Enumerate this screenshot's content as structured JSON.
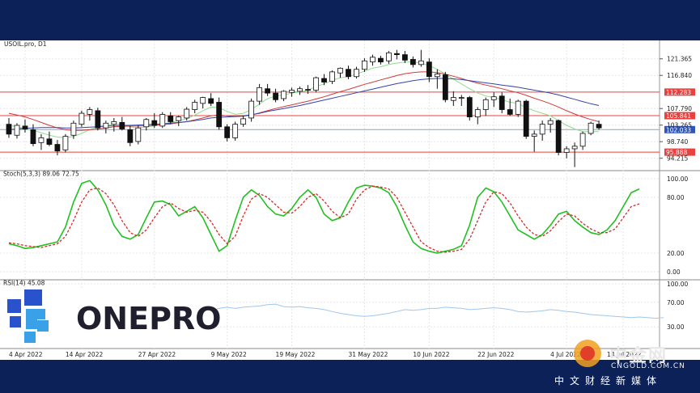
{
  "header": {
    "title": "USOIL.pro, D1"
  },
  "price_axis": {
    "ticks": [
      "121.365",
      "116.840",
      "107.790",
      "103.265",
      "98.740",
      "94.215"
    ],
    "tick_values": [
      121.365,
      116.84,
      107.79,
      103.265,
      98.74,
      94.215
    ],
    "levels": [
      {
        "label": "112.283",
        "value": 112.283,
        "color": "#e8413f"
      },
      {
        "label": "105.841",
        "value": 105.841,
        "color": "#e8413f"
      },
      {
        "label": "102.033",
        "value": 102.033,
        "color": "#2f56b8"
      },
      {
        "label": "95.888",
        "value": 95.888,
        "color": "#e8413f"
      }
    ],
    "range": [
      91.5,
      125.5
    ]
  },
  "x_axis": {
    "labels": [
      "4 Apr 2022",
      "14 Apr 2022",
      "27 Apr 2022",
      "9 May 2022",
      "19 May 2022",
      "31 May 2022",
      "10 Jun 2022",
      "22 Jun 2022",
      "4 Jul 2022",
      "14 Jul 2022"
    ],
    "label_index": [
      2,
      9,
      18,
      27,
      35,
      44,
      52,
      60,
      69,
      76
    ]
  },
  "stoch": {
    "title": "Stoch(5,3,3) 89.06 72.75",
    "ticks": [
      "100.00",
      "80.00",
      "20.00",
      "0.00"
    ],
    "tick_values": [
      100,
      80,
      20,
      0
    ],
    "colors": {
      "k": "#22c022",
      "d": "#d42a2a"
    }
  },
  "rsi": {
    "title": "RSI(14) 45.08",
    "ticks": [
      "100.00",
      "70.00",
      "30.00"
    ],
    "tick_values": [
      100,
      70,
      30
    ]
  },
  "logo": {
    "text": "ONEPRO"
  },
  "watermark": {
    "cn": "中金网",
    "url": "CNGOLD.COM.CN",
    "sub": "中文财经新媒体"
  },
  "chart_data": {
    "type": "candlestick",
    "title": "USOIL.pro, D1",
    "x_count": 81,
    "candles": [
      [
        103.5,
        105.2,
        99.8,
        100.8
      ],
      [
        100.5,
        103.8,
        99.6,
        103.2
      ],
      [
        103.0,
        104.8,
        101.2,
        102.2
      ],
      [
        102.0,
        103.5,
        97.5,
        98.2
      ],
      [
        98.5,
        100.8,
        96.5,
        99.8
      ],
      [
        99.5,
        101.5,
        97.5,
        98.0
      ],
      [
        98.0,
        99.2,
        95.0,
        96.2
      ],
      [
        96.5,
        100.8,
        95.8,
        100.2
      ],
      [
        100.5,
        104.5,
        99.5,
        103.8
      ],
      [
        103.5,
        107.2,
        102.8,
        106.5
      ],
      [
        106.2,
        108.2,
        104.5,
        107.5
      ],
      [
        107.2,
        108.0,
        101.8,
        102.5
      ],
      [
        102.5,
        104.5,
        101.0,
        103.8
      ],
      [
        103.5,
        105.2,
        101.5,
        104.2
      ],
      [
        104.0,
        105.5,
        101.8,
        102.2
      ],
      [
        102.0,
        103.0,
        97.5,
        98.5
      ],
      [
        98.8,
        103.2,
        98.0,
        102.5
      ],
      [
        102.8,
        105.2,
        101.8,
        104.8
      ],
      [
        104.5,
        106.5,
        102.5,
        103.2
      ],
      [
        103.0,
        106.8,
        102.5,
        106.2
      ],
      [
        105.8,
        106.8,
        103.5,
        104.2
      ],
      [
        104.5,
        105.8,
        103.0,
        105.5
      ],
      [
        105.2,
        108.2,
        104.5,
        107.6
      ],
      [
        107.5,
        110.2,
        106.5,
        109.5
      ],
      [
        109.2,
        111.0,
        107.8,
        110.8
      ],
      [
        110.5,
        112.0,
        108.5,
        109.2
      ],
      [
        109.5,
        110.8,
        102.0,
        102.8
      ],
      [
        102.8,
        103.5,
        98.8,
        99.8
      ],
      [
        99.8,
        104.2,
        99.0,
        103.5
      ],
      [
        103.5,
        105.8,
        102.8,
        105.0
      ],
      [
        105.2,
        110.5,
        104.2,
        109.8
      ],
      [
        109.8,
        114.5,
        108.8,
        113.5
      ],
      [
        113.2,
        114.5,
        111.2,
        112.0
      ],
      [
        112.0,
        113.2,
        109.5,
        110.2
      ],
      [
        110.5,
        112.8,
        109.8,
        112.5
      ],
      [
        112.2,
        113.5,
        111.0,
        112.8
      ],
      [
        112.5,
        113.8,
        111.5,
        113.2
      ],
      [
        113.0,
        114.2,
        111.8,
        112.8
      ],
      [
        112.8,
        116.5,
        112.2,
        116.2
      ],
      [
        116.0,
        117.2,
        114.2,
        115.0
      ],
      [
        115.2,
        118.2,
        114.5,
        117.8
      ],
      [
        117.5,
        119.0,
        116.2,
        118.8
      ],
      [
        118.5,
        119.5,
        115.8,
        116.5
      ],
      [
        116.5,
        119.2,
        116.0,
        118.5
      ],
      [
        118.5,
        121.5,
        117.8,
        120.8
      ],
      [
        120.5,
        122.5,
        119.5,
        121.8
      ],
      [
        121.5,
        122.2,
        119.8,
        120.5
      ],
      [
        120.8,
        123.5,
        120.0,
        123.0
      ],
      [
        122.8,
        123.8,
        121.2,
        122.5
      ],
      [
        122.5,
        123.5,
        120.2,
        121.0
      ],
      [
        121.2,
        122.0,
        119.0,
        119.8
      ],
      [
        119.8,
        123.8,
        119.2,
        120.8
      ],
      [
        120.5,
        121.5,
        115.0,
        116.5
      ],
      [
        116.5,
        118.5,
        113.2,
        117.2
      ],
      [
        117.0,
        117.8,
        109.5,
        110.2
      ],
      [
        110.0,
        112.5,
        108.5,
        110.8
      ],
      [
        110.8,
        111.5,
        108.5,
        110.8
      ],
      [
        110.8,
        111.2,
        104.5,
        105.5
      ],
      [
        105.5,
        108.2,
        103.5,
        107.5
      ],
      [
        107.5,
        110.8,
        105.8,
        110.2
      ],
      [
        110.2,
        112.2,
        108.2,
        111.0
      ],
      [
        111.2,
        112.2,
        106.5,
        107.5
      ],
      [
        107.5,
        110.5,
        105.8,
        106.2
      ],
      [
        106.2,
        110.2,
        105.5,
        109.8
      ],
      [
        109.8,
        110.2,
        99.5,
        100.2
      ],
      [
        100.2,
        101.8,
        96.0,
        100.8
      ],
      [
        100.8,
        104.5,
        99.0,
        103.5
      ],
      [
        103.5,
        105.2,
        101.2,
        104.5
      ],
      [
        104.5,
        104.8,
        95.0,
        95.8
      ],
      [
        95.8,
        97.5,
        94.2,
        96.8
      ],
      [
        96.8,
        98.5,
        91.8,
        97.5
      ],
      [
        97.5,
        101.5,
        96.5,
        101.0
      ],
      [
        101.0,
        104.2,
        100.5,
        103.8
      ],
      [
        103.5,
        104.5,
        102.0,
        102.5
      ]
    ],
    "ma_green": [
      103.2,
      102.8,
      102.2,
      101.8,
      101.2,
      100.5,
      100.0,
      99.8,
      100.2,
      101.0,
      102.0,
      102.8,
      103.2,
      103.5,
      103.5,
      102.8,
      102.5,
      102.8,
      103.0,
      103.5,
      104.0,
      104.5,
      105.0,
      106.0,
      107.2,
      108.2,
      108.0,
      107.0,
      106.2,
      106.5,
      107.5,
      109.0,
      110.5,
      111.2,
      111.5,
      112.0,
      112.3,
      112.8,
      113.8,
      114.5,
      115.5,
      116.2,
      116.5,
      117.2,
      118.0,
      118.8,
      119.2,
      119.8,
      120.2,
      120.5,
      120.5,
      120.2,
      119.5,
      118.5,
      117.2,
      115.8,
      114.5,
      113.2,
      112.0,
      111.2,
      110.8,
      110.2,
      109.5,
      109.2,
      108.0,
      107.2,
      106.5,
      105.8,
      104.5,
      103.2,
      102.2,
      101.5,
      101.5,
      101.5
    ],
    "ma_red": [
      106.5,
      106.0,
      105.5,
      104.8,
      104.0,
      103.2,
      102.5,
      102.0,
      101.8,
      101.8,
      102.0,
      102.2,
      102.5,
      102.8,
      102.9,
      103.0,
      103.0,
      103.1,
      103.2,
      103.4,
      103.6,
      103.9,
      104.2,
      104.7,
      105.2,
      105.8,
      106.0,
      105.8,
      105.6,
      105.7,
      106.0,
      106.6,
      107.2,
      107.8,
      108.3,
      108.8,
      109.3,
      109.8,
      110.4,
      111.0,
      111.7,
      112.4,
      113.0,
      113.7,
      114.4,
      115.0,
      115.6,
      116.2,
      116.8,
      117.3,
      117.6,
      117.8,
      117.8,
      117.6,
      117.2,
      116.6,
      116.0,
      115.3,
      114.7,
      114.2,
      113.7,
      113.2,
      112.6,
      112.1,
      111.4,
      110.6,
      109.9,
      109.1,
      108.2,
      107.2,
      106.3,
      105.5,
      104.8,
      104.2
    ],
    "ma_blue": [
      102.0,
      102.2,
      102.4,
      102.5,
      102.6,
      102.6,
      102.6,
      102.5,
      102.5,
      102.6,
      102.7,
      102.8,
      103.0,
      103.1,
      103.2,
      103.2,
      103.3,
      103.4,
      103.5,
      103.6,
      103.8,
      104.0,
      104.2,
      104.5,
      104.8,
      105.2,
      105.4,
      105.5,
      105.6,
      105.8,
      106.1,
      106.5,
      107.0,
      107.4,
      107.8,
      108.2,
      108.6,
      109.1,
      109.6,
      110.1,
      110.6,
      111.1,
      111.6,
      112.1,
      112.6,
      113.1,
      113.6,
      114.1,
      114.6,
      115.0,
      115.4,
      115.7,
      115.9,
      116.0,
      116.0,
      115.9,
      115.7,
      115.4,
      115.1,
      114.8,
      114.5,
      114.2,
      113.9,
      113.6,
      113.2,
      112.8,
      112.4,
      112.0,
      111.5,
      110.9,
      110.3,
      109.7,
      109.1,
      108.6
    ],
    "stoch_k": [
      30,
      28,
      25,
      26,
      28,
      30,
      32,
      48,
      75,
      95,
      98,
      88,
      72,
      50,
      38,
      35,
      40,
      58,
      75,
      76,
      72,
      60,
      65,
      70,
      58,
      40,
      22,
      28,
      55,
      80,
      88,
      82,
      70,
      62,
      60,
      68,
      80,
      88,
      80,
      62,
      55,
      58,
      75,
      90,
      93,
      92,
      90,
      85,
      70,
      50,
      32,
      25,
      22,
      20,
      22,
      24,
      28,
      50,
      80,
      90,
      86,
      75,
      60,
      45,
      40,
      35,
      40,
      50,
      62,
      65,
      55,
      48,
      42,
      40,
      45,
      55,
      70,
      85,
      89
    ],
    "stoch_d": [
      31,
      30,
      28,
      27,
      26,
      28,
      30,
      38,
      55,
      75,
      88,
      90,
      84,
      72,
      55,
      42,
      38,
      45,
      58,
      70,
      74,
      68,
      64,
      66,
      64,
      54,
      40,
      30,
      38,
      60,
      78,
      84,
      80,
      72,
      64,
      63,
      70,
      80,
      84,
      76,
      65,
      58,
      62,
      78,
      88,
      92,
      91,
      89,
      80,
      64,
      48,
      32,
      26,
      22,
      21,
      22,
      24,
      35,
      55,
      75,
      86,
      84,
      74,
      60,
      48,
      40,
      38,
      44,
      54,
      62,
      60,
      52,
      46,
      42,
      42,
      46,
      58,
      70,
      73
    ],
    "rsi": [
      58,
      57,
      56,
      58,
      60,
      62,
      60,
      62,
      63,
      64,
      66,
      67,
      63,
      62,
      63,
      61,
      60,
      58,
      55,
      52,
      50,
      48,
      47,
      48,
      50,
      52,
      55,
      58,
      57,
      58,
      60,
      60,
      62,
      61,
      60,
      58,
      59,
      60,
      61,
      60,
      58,
      55,
      54,
      55,
      56,
      58,
      57,
      55,
      54,
      52,
      50,
      49,
      48,
      47,
      46,
      45,
      46,
      45,
      44,
      45
    ]
  }
}
